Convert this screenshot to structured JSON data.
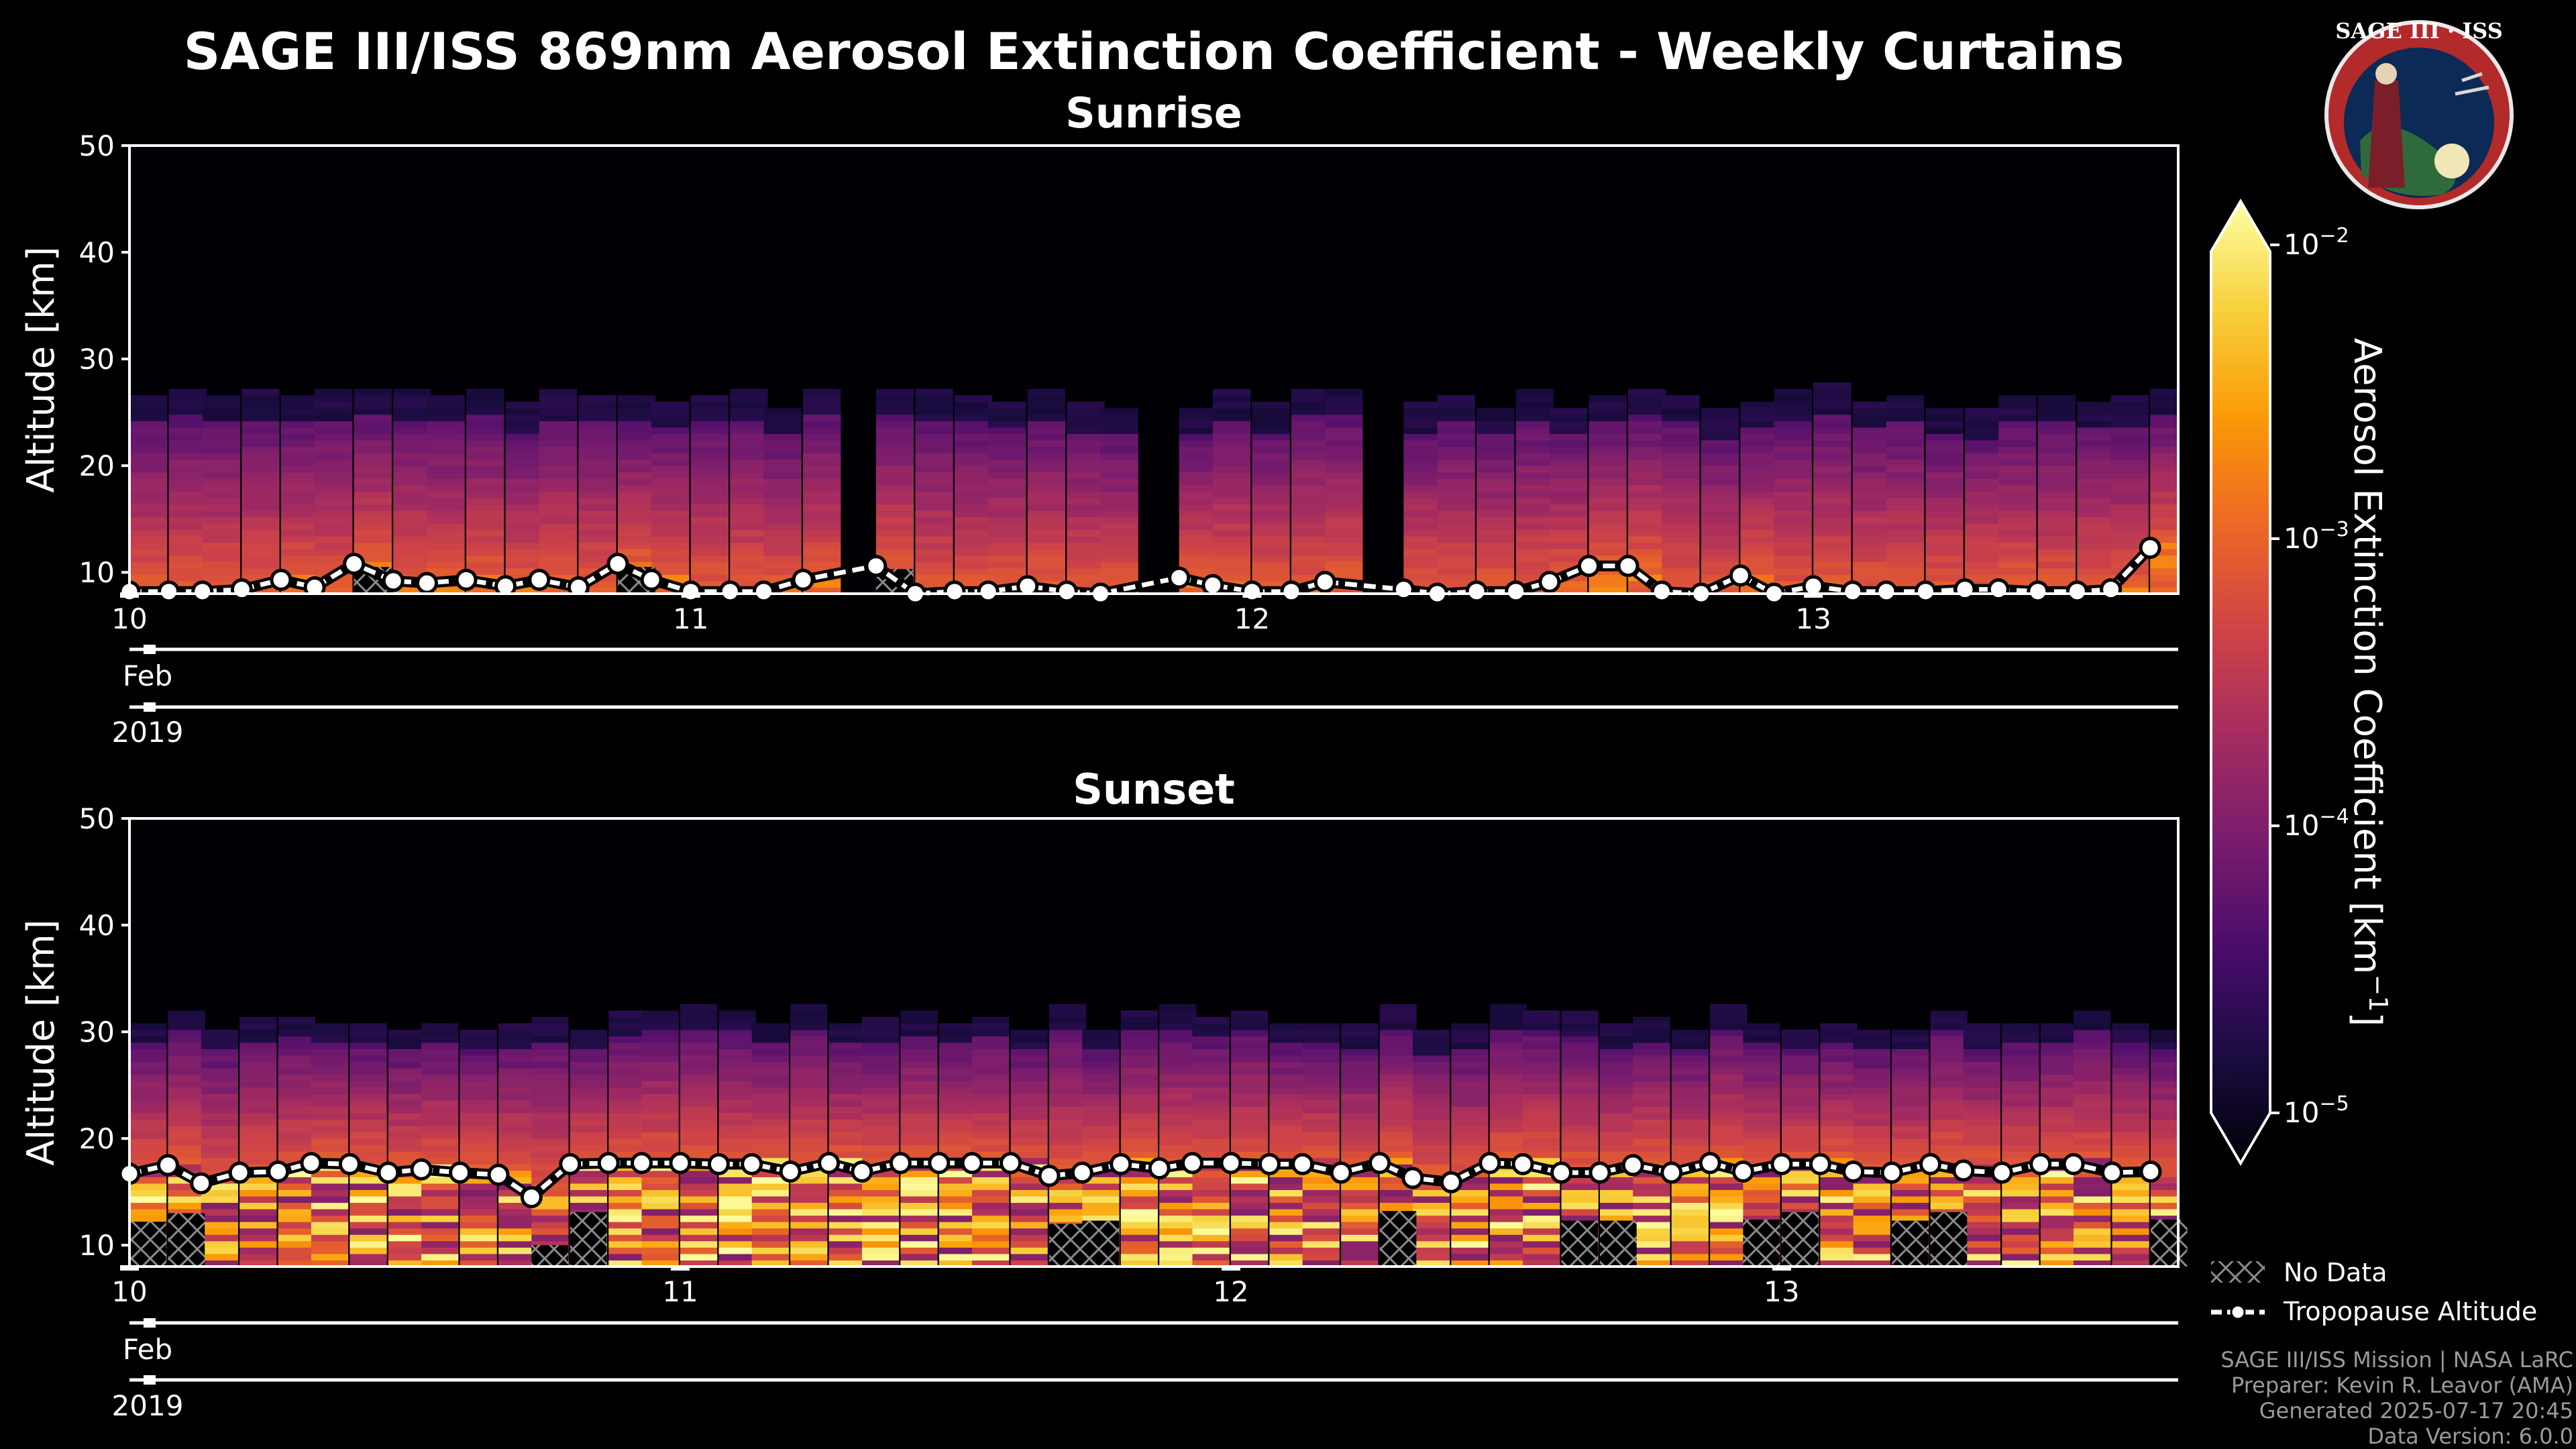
{
  "header": {
    "title": "SAGE III/ISS 869nm Aerosol Extinction Coefficient - Weekly Curtains"
  },
  "logo": {
    "text": "SAGE III · ISS"
  },
  "colorbar": {
    "label_base": "Aerosol Extinction Coefficient [km",
    "label_sup": "−1",
    "label_end": "]",
    "ticks": [
      {
        "base": "10",
        "exp": "−2",
        "value": 0.01
      },
      {
        "base": "10",
        "exp": "−3",
        "value": 0.001
      },
      {
        "base": "10",
        "exp": "−4",
        "value": 0.0001
      },
      {
        "base": "10",
        "exp": "−5",
        "value": 1e-05
      }
    ],
    "colors": [
      "#000004",
      "#1b0c41",
      "#4a0c6b",
      "#781c6d",
      "#a52c60",
      "#cf4446",
      "#ed6925",
      "#fb9b06",
      "#f7d13d",
      "#fcffa4"
    ]
  },
  "legend": {
    "no_data": "No Data",
    "tropopause": "Tropopause Altitude"
  },
  "credits": {
    "line1": "SAGE III/ISS Mission | NASA LaRC",
    "line2": "Preparer: Kevin R. Leavor (AMA)",
    "line3": "Generated 2025-07-17 20:45",
    "line4": "Data Version: 6.0.0"
  },
  "chart_data": [
    {
      "type": "heatmap",
      "title": "Sunrise",
      "ylabel": "Altitude [km]",
      "ylim": [
        8,
        50
      ],
      "yticks": [
        "10",
        "20",
        "30",
        "40",
        "50"
      ],
      "xlim": [
        10.0,
        13.65
      ],
      "xticks": [
        {
          "value": 10,
          "label": "10"
        },
        {
          "value": 11,
          "label": "11"
        },
        {
          "value": 12,
          "label": "12"
        },
        {
          "value": 13,
          "label": "13"
        }
      ],
      "month_label": "Feb",
      "year_label": "2019",
      "aerosol_top_km": 26,
      "tropopause": {
        "x": [
          10.0,
          10.07,
          10.13,
          10.2,
          10.27,
          10.33,
          10.4,
          10.47,
          10.53,
          10.6,
          10.67,
          10.73,
          10.8,
          10.87,
          10.93,
          11.0,
          11.07,
          11.13,
          11.2,
          11.33,
          11.4,
          11.47,
          11.53,
          11.6,
          11.67,
          11.73,
          11.87,
          11.93,
          12.0,
          12.07,
          12.13,
          12.27,
          12.33,
          12.4,
          12.47,
          12.53,
          12.6,
          12.67,
          12.73,
          12.8,
          12.87,
          12.93,
          13.0,
          13.07,
          13.13,
          13.2,
          13.27,
          13.33,
          13.4,
          13.47,
          13.53,
          13.6
        ],
        "y": [
          8.2,
          8.2,
          8.2,
          8.4,
          9.3,
          8.6,
          10.8,
          9.2,
          9.0,
          9.3,
          8.7,
          9.3,
          8.6,
          10.8,
          9.3,
          8.2,
          8.2,
          8.2,
          9.3,
          10.6,
          8.0,
          8.2,
          8.2,
          8.7,
          8.2,
          8.0,
          9.5,
          8.8,
          8.2,
          8.2,
          9.1,
          8.4,
          8.0,
          8.2,
          8.2,
          9.1,
          10.6,
          10.6,
          8.2,
          8.0,
          9.7,
          8.0,
          8.7,
          8.2,
          8.2,
          8.2,
          8.4,
          8.4,
          8.2,
          8.2,
          8.4,
          12.3
        ]
      },
      "no_data_x": [
        10.4,
        10.87,
        11.33
      ]
    },
    {
      "type": "heatmap",
      "title": "Sunset",
      "ylabel": "Altitude [km]",
      "ylim": [
        8,
        50
      ],
      "yticks": [
        "10",
        "20",
        "30",
        "40",
        "50"
      ],
      "xlim": [
        10.0,
        13.72
      ],
      "xticks": [
        {
          "value": 10,
          "label": "10"
        },
        {
          "value": 11,
          "label": "11"
        },
        {
          "value": 12,
          "label": "12"
        },
        {
          "value": 13,
          "label": "13"
        }
      ],
      "month_label": "Feb",
      "year_label": "2019",
      "aerosol_top_km": 31,
      "tropopause": {
        "x": [
          10.0,
          10.07,
          10.13,
          10.2,
          10.27,
          10.33,
          10.4,
          10.47,
          10.53,
          10.6,
          10.67,
          10.73,
          10.8,
          10.87,
          10.93,
          11.0,
          11.07,
          11.13,
          11.2,
          11.27,
          11.33,
          11.4,
          11.47,
          11.53,
          11.6,
          11.67,
          11.73,
          11.8,
          11.87,
          11.93,
          12.0,
          12.07,
          12.13,
          12.2,
          12.27,
          12.33,
          12.4,
          12.47,
          12.53,
          12.6,
          12.67,
          12.73,
          12.8,
          12.87,
          12.93,
          13.0,
          13.07,
          13.13,
          13.2,
          13.27,
          13.33,
          13.4,
          13.47,
          13.53,
          13.6,
          13.67
        ],
        "y": [
          16.7,
          17.5,
          15.8,
          16.8,
          16.9,
          17.7,
          17.6,
          16.8,
          17.1,
          16.8,
          16.6,
          14.5,
          17.6,
          17.7,
          17.7,
          17.7,
          17.6,
          17.6,
          16.9,
          17.7,
          16.9,
          17.7,
          17.7,
          17.7,
          17.7,
          16.5,
          16.8,
          17.6,
          17.2,
          17.7,
          17.7,
          17.6,
          17.6,
          16.8,
          17.7,
          16.3,
          15.9,
          17.7,
          17.6,
          16.8,
          16.8,
          17.5,
          16.8,
          17.7,
          16.9,
          17.6,
          17.6,
          16.9,
          16.8,
          17.6,
          17.0,
          16.8,
          17.6,
          17.6,
          16.8,
          16.9
        ]
      },
      "no_data_x": [
        10.0,
        10.07,
        10.73,
        10.8,
        11.67,
        11.73,
        12.27,
        12.6,
        12.67,
        12.93,
        13.0,
        13.2,
        13.27,
        13.67
      ]
    }
  ]
}
